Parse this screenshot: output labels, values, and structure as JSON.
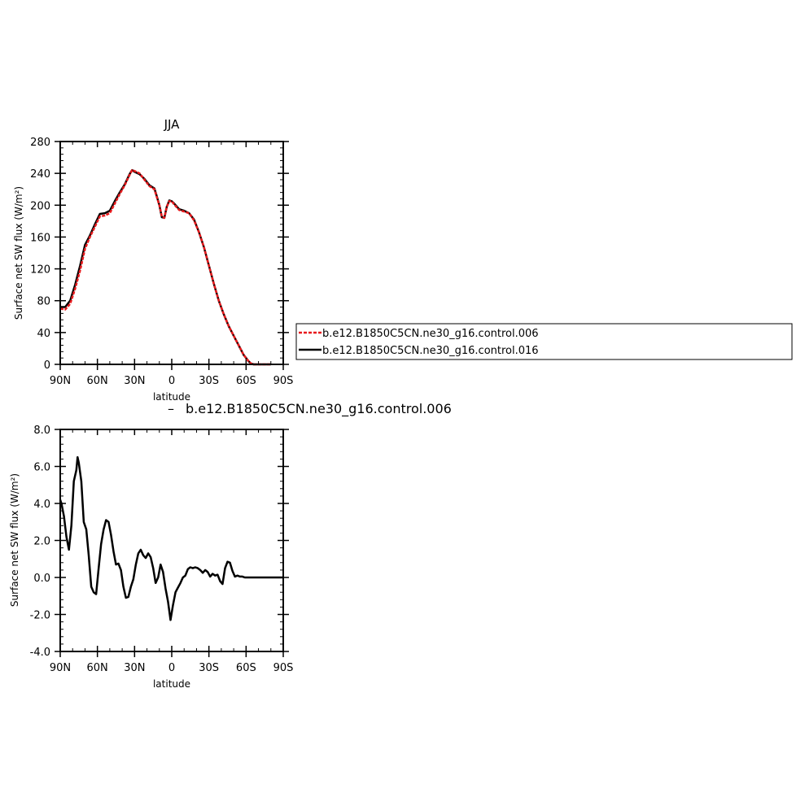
{
  "chart_data": [
    {
      "type": "line",
      "title": "JJA",
      "xlabel": "latitude",
      "ylabel": "Surface net SW flux (W/m²)",
      "xlim": [
        90,
        -90
      ],
      "ylim": [
        0,
        280
      ],
      "x_ticks": [
        90,
        60,
        30,
        0,
        -30,
        -60,
        -90
      ],
      "x_tick_labels": [
        "90N",
        "60N",
        "30N",
        "0",
        "30S",
        "60S",
        "90S"
      ],
      "y_ticks": [
        0,
        40,
        80,
        120,
        160,
        200,
        240,
        280
      ],
      "y_tick_labels": [
        "0",
        "40",
        "80",
        "120",
        "160",
        "200",
        "240",
        "280"
      ],
      "legend_position": "right of plot",
      "series": [
        {
          "name": "b.e12.B1850C5CN.ne30_g16.control.006",
          "color": "#e8191c",
          "dash": "dashed",
          "x": [
            90,
            86,
            82,
            78,
            74,
            70,
            66,
            62,
            58,
            54,
            50,
            46,
            42,
            38,
            34,
            32,
            30,
            26,
            22,
            18,
            14,
            12,
            10,
            8,
            6,
            4,
            2,
            0,
            -2,
            -6,
            -10,
            -14,
            -18,
            -22,
            -26,
            -30,
            -34,
            -38,
            -42,
            -46,
            -50,
            -54,
            -58,
            -62,
            -64,
            -66,
            -70,
            -74,
            -80
          ],
          "y": [
            70,
            69,
            76,
            95,
            118,
            145,
            160,
            173,
            186,
            187,
            190,
            202,
            214,
            225,
            238,
            244,
            243,
            240,
            232,
            224,
            220,
            210,
            200,
            186,
            184,
            198,
            205,
            205,
            201,
            194,
            192,
            190,
            181,
            166,
            147,
            124,
            101,
            80,
            63,
            48,
            36,
            24,
            12,
            4,
            1,
            0,
            0,
            0,
            0
          ]
        },
        {
          "name": "b.e12.B1850C5CN.ne30_g16.control.016",
          "color": "#000000",
          "dash": "solid",
          "x": [
            90,
            86,
            82,
            78,
            74,
            70,
            66,
            62,
            58,
            54,
            50,
            46,
            42,
            38,
            34,
            32,
            30,
            26,
            22,
            18,
            14,
            12,
            10,
            8,
            6,
            4,
            2,
            0,
            -2,
            -6,
            -10,
            -14,
            -18,
            -22,
            -26,
            -30,
            -34,
            -38,
            -42,
            -46,
            -50,
            -54,
            -58,
            -62,
            -64,
            -66,
            -70,
            -74,
            -80
          ],
          "y": [
            72,
            72,
            80,
            100,
            124,
            150,
            162,
            176,
            189,
            190,
            193,
            205,
            216,
            226,
            239,
            244,
            242,
            239,
            233,
            225,
            221,
            211,
            200,
            185,
            184,
            198,
            206,
            205,
            202,
            195,
            193,
            190,
            182,
            166,
            147,
            124,
            101,
            80,
            63,
            48,
            36,
            24,
            12,
            4,
            1,
            0,
            0,
            0,
            0
          ]
        }
      ]
    },
    {
      "type": "line",
      "title": "b.e12.B1850C5CN.ne30_g16.control.006",
      "title_prefix": "–",
      "xlabel": "latitude",
      "ylabel": "Surface net SW flux (W/m²)",
      "xlim": [
        90,
        -90
      ],
      "ylim": [
        -4,
        8
      ],
      "x_ticks": [
        90,
        60,
        30,
        0,
        -30,
        -60,
        -90
      ],
      "x_tick_labels": [
        "90N",
        "60N",
        "30N",
        "0",
        "30S",
        "60S",
        "90S"
      ],
      "y_ticks": [
        -4,
        -2,
        0,
        2,
        4,
        6,
        8
      ],
      "y_tick_labels": [
        "-4.0",
        "-2.0",
        "0.0",
        "2.0",
        "4.0",
        "6.0",
        "8.0"
      ],
      "series": [
        {
          "color": "#000000",
          "x": [
            90,
            89,
            87,
            85,
            83,
            81,
            79,
            77,
            76,
            75,
            73,
            71,
            69,
            67,
            65,
            63,
            61,
            59,
            57,
            55,
            53,
            51,
            49,
            47,
            45,
            43,
            41,
            39,
            37,
            35,
            33,
            31,
            29,
            27,
            25,
            23,
            21,
            19,
            17,
            15,
            13,
            11,
            9,
            7,
            5,
            3,
            1,
            -1,
            -3,
            -5,
            -7,
            -9,
            -11,
            -13,
            -15,
            -17,
            -19,
            -21,
            -23,
            -25,
            -27,
            -29,
            -31,
            -33,
            -35,
            -37,
            -39,
            -41,
            -43,
            -45,
            -47,
            -49,
            -51,
            -53,
            -55,
            -57,
            -59,
            -61,
            -63,
            -65,
            -67,
            -70,
            -75,
            -80,
            -85,
            -90
          ],
          "y": [
            4.2,
            4.0,
            3.3,
            2.2,
            1.5,
            2.8,
            5.2,
            5.8,
            6.5,
            6.2,
            5.2,
            3.0,
            2.6,
            1.2,
            -0.5,
            -0.8,
            -0.9,
            0.5,
            1.8,
            2.6,
            3.1,
            3.0,
            2.3,
            1.4,
            0.7,
            0.75,
            0.4,
            -0.5,
            -1.1,
            -1.05,
            -0.5,
            -0.1,
            0.7,
            1.3,
            1.5,
            1.2,
            1.05,
            1.3,
            1.1,
            0.5,
            -0.3,
            0.0,
            0.7,
            0.3,
            -0.6,
            -1.3,
            -2.3,
            -1.5,
            -0.8,
            -0.55,
            -0.3,
            0.0,
            0.1,
            0.45,
            0.55,
            0.5,
            0.55,
            0.5,
            0.4,
            0.25,
            0.4,
            0.3,
            0.05,
            0.2,
            0.1,
            0.15,
            -0.2,
            -0.35,
            0.5,
            0.85,
            0.8,
            0.35,
            0.05,
            0.1,
            0.05,
            0.05,
            0.0,
            0.0,
            0.0,
            0.0,
            0.0,
            0.0,
            0.0,
            0.0,
            0.0,
            0.0
          ]
        }
      ]
    }
  ]
}
